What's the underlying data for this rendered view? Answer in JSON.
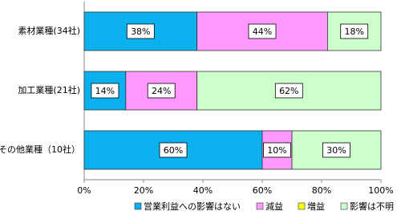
{
  "chart_data": {
    "type": "stacked-bar-horizontal",
    "categories": [
      "素材業種(34社)",
      "加工業種(21社)",
      "その他業種（10社）"
    ],
    "series": [
      {
        "name": "営業利益への影響はない",
        "color": "#0BB0EE",
        "values": [
          38,
          14,
          60
        ],
        "value_labels": [
          "38%",
          "14%",
          "60%"
        ]
      },
      {
        "name": "減益",
        "color": "#FF99FF",
        "values": [
          44,
          24,
          10
        ],
        "value_labels": [
          "44%",
          "24%",
          "10%"
        ]
      },
      {
        "name": "増益",
        "color": "#FFFF00",
        "values": [
          0,
          0,
          0
        ],
        "value_labels": [
          null,
          null,
          null
        ]
      },
      {
        "name": "影響は不明",
        "color": "#CCFFCC",
        "values": [
          18,
          62,
          30
        ],
        "value_labels": [
          "18%",
          "62%",
          "30%"
        ]
      }
    ],
    "xlim": [
      0,
      100
    ],
    "xticks": [
      {
        "value": 0,
        "label": "0%"
      },
      {
        "value": 20,
        "label": "20%"
      },
      {
        "value": 40,
        "label": "40%"
      },
      {
        "value": 60,
        "label": "60%"
      },
      {
        "value": 80,
        "label": "80%"
      },
      {
        "value": 100,
        "label": "100%"
      }
    ],
    "legend": "bottom"
  }
}
